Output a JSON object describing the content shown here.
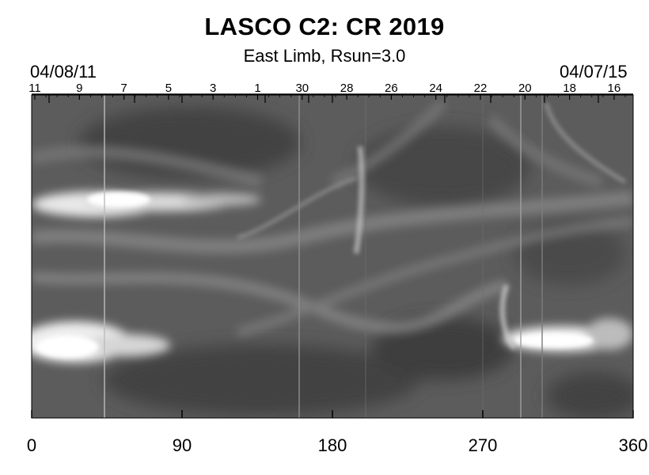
{
  "header": {
    "title": "LASCO C2: CR 2019",
    "subtitle": "East Limb, Rsun=3.0",
    "date_left": "04/08/11",
    "date_right": "04/07/15"
  },
  "top_axis": {
    "labels": [
      "11",
      "9",
      "7",
      "5",
      "3",
      "1",
      "30",
      "28",
      "26",
      "24",
      "22",
      "20",
      "18",
      "16"
    ]
  },
  "bottom_axis": {
    "labels": [
      "0",
      "90",
      "180",
      "270",
      "360"
    ]
  },
  "image": {
    "description_colors": {
      "background": "#5a5a5a",
      "bright": "#f4f4f4"
    }
  }
}
